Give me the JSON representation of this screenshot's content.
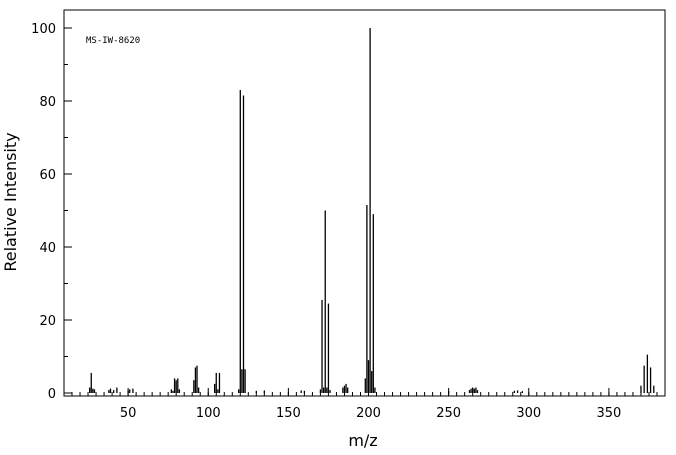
{
  "chart_data": {
    "type": "bar",
    "title": "",
    "annotation": "MS-IW-8620",
    "xlabel": "m/z",
    "ylabel": "Relative Intensity",
    "xlim": [
      10,
      385
    ],
    "ylim": [
      0,
      105
    ],
    "x_ticks": [
      50,
      100,
      150,
      200,
      250,
      300,
      350
    ],
    "y_ticks": [
      0,
      20,
      40,
      60,
      80,
      100
    ],
    "grid": false,
    "peaks": [
      {
        "x": 26,
        "y": 1.5
      },
      {
        "x": 27,
        "y": 5.5
      },
      {
        "x": 28,
        "y": 1.2
      },
      {
        "x": 29,
        "y": 1.0
      },
      {
        "x": 38,
        "y": 0.8
      },
      {
        "x": 39,
        "y": 1.2
      },
      {
        "x": 41,
        "y": 0.8
      },
      {
        "x": 43,
        "y": 1.5
      },
      {
        "x": 50,
        "y": 0.7
      },
      {
        "x": 51,
        "y": 1.0
      },
      {
        "x": 53,
        "y": 1.2
      },
      {
        "x": 77,
        "y": 1.0
      },
      {
        "x": 78,
        "y": 0.6
      },
      {
        "x": 79,
        "y": 4.0
      },
      {
        "x": 80,
        "y": 3.5
      },
      {
        "x": 81,
        "y": 4.0
      },
      {
        "x": 82,
        "y": 1.0
      },
      {
        "x": 91,
        "y": 3.5
      },
      {
        "x": 92,
        "y": 7.0
      },
      {
        "x": 93,
        "y": 7.5
      },
      {
        "x": 94,
        "y": 1.5
      },
      {
        "x": 104,
        "y": 2.5
      },
      {
        "x": 105,
        "y": 5.5
      },
      {
        "x": 106,
        "y": 1.0
      },
      {
        "x": 107,
        "y": 5.5
      },
      {
        "x": 119,
        "y": 1.0
      },
      {
        "x": 120,
        "y": 83.0
      },
      {
        "x": 121,
        "y": 6.5
      },
      {
        "x": 122,
        "y": 81.5
      },
      {
        "x": 123,
        "y": 6.5
      },
      {
        "x": 130,
        "y": 0.6
      },
      {
        "x": 135,
        "y": 0.7
      },
      {
        "x": 158,
        "y": 0.7
      },
      {
        "x": 160,
        "y": 0.6
      },
      {
        "x": 170,
        "y": 1.0
      },
      {
        "x": 171,
        "y": 25.5
      },
      {
        "x": 172,
        "y": 1.5
      },
      {
        "x": 173,
        "y": 50.0
      },
      {
        "x": 174,
        "y": 1.5
      },
      {
        "x": 175,
        "y": 24.5
      },
      {
        "x": 176,
        "y": 0.8
      },
      {
        "x": 184,
        "y": 1.5
      },
      {
        "x": 185,
        "y": 2.0
      },
      {
        "x": 186,
        "y": 2.5
      },
      {
        "x": 187,
        "y": 1.5
      },
      {
        "x": 198,
        "y": 4.0
      },
      {
        "x": 199,
        "y": 51.5
      },
      {
        "x": 200,
        "y": 9.0
      },
      {
        "x": 201,
        "y": 100.0
      },
      {
        "x": 202,
        "y": 6.0
      },
      {
        "x": 203,
        "y": 49.0
      },
      {
        "x": 204,
        "y": 1.5
      },
      {
        "x": 250,
        "y": 0.6
      },
      {
        "x": 263,
        "y": 0.8
      },
      {
        "x": 264,
        "y": 1.2
      },
      {
        "x": 265,
        "y": 1.5
      },
      {
        "x": 266,
        "y": 1.2
      },
      {
        "x": 267,
        "y": 1.5
      },
      {
        "x": 268,
        "y": 0.8
      },
      {
        "x": 291,
        "y": 0.6
      },
      {
        "x": 293,
        "y": 0.7
      },
      {
        "x": 296,
        "y": 0.5
      },
      {
        "x": 370,
        "y": 2.0
      },
      {
        "x": 372,
        "y": 7.5
      },
      {
        "x": 374,
        "y": 10.5
      },
      {
        "x": 376,
        "y": 7.0
      },
      {
        "x": 378,
        "y": 2.0
      }
    ]
  }
}
